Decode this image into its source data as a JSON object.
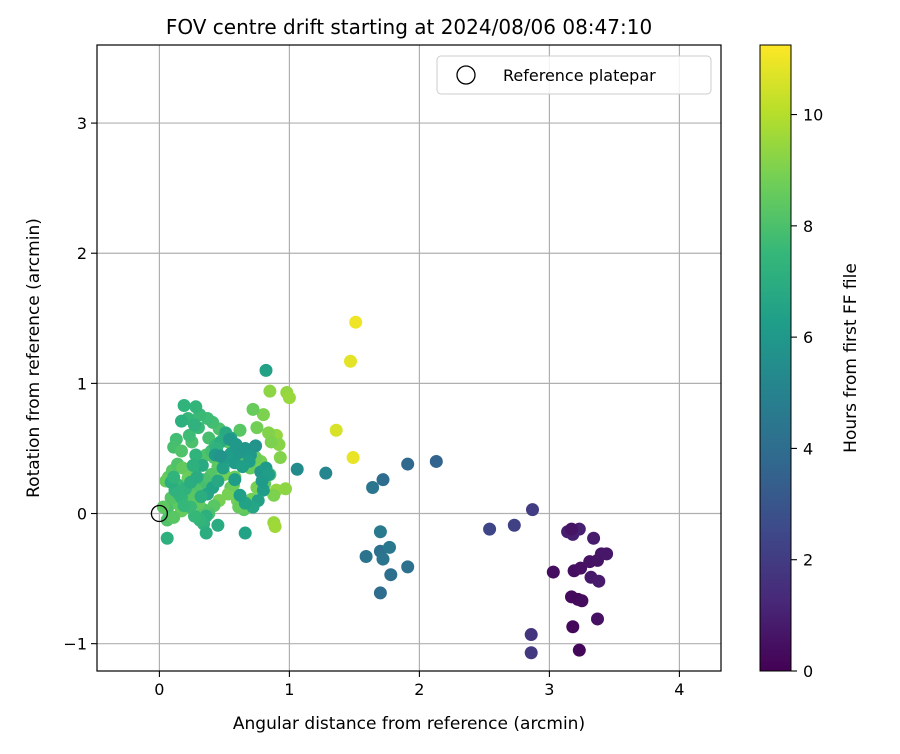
{
  "chart_data": {
    "type": "scatter",
    "title": "FOV centre drift starting at 2024/08/06 08:47:10",
    "xlabel": "Angular distance from reference (arcmin)",
    "ylabel": "Rotation from reference (arcmin)",
    "xlim": [
      -0.48,
      4.32
    ],
    "ylim": [
      -1.21,
      3.6
    ],
    "xticks": [
      0,
      1,
      2,
      3,
      4
    ],
    "yticks": [
      -1,
      0,
      1,
      2,
      3
    ],
    "grid": true,
    "legend": {
      "placement": "top-right",
      "entries": [
        "Reference platepar"
      ]
    },
    "reference_point": {
      "x": 0,
      "y": 0
    },
    "colorbar": {
      "label": "Hours from first FF file",
      "range": [
        0,
        11.25
      ],
      "ticks": [
        0,
        2,
        4,
        6,
        8,
        10
      ],
      "colormap": "viridis"
    },
    "points": [
      [
        3.23,
        -1.05,
        0.15
      ],
      [
        3.18,
        -0.87,
        0.2
      ],
      [
        3.17,
        -0.64,
        0.3
      ],
      [
        3.22,
        -0.66,
        0.25
      ],
      [
        3.25,
        -0.67,
        0.35
      ],
      [
        3.03,
        -0.45,
        0.4
      ],
      [
        3.19,
        -0.44,
        0.45
      ],
      [
        3.24,
        -0.42,
        0.5
      ],
      [
        3.31,
        -0.37,
        0.55
      ],
      [
        3.37,
        -0.36,
        0.6
      ],
      [
        3.4,
        -0.31,
        0.65
      ],
      [
        3.44,
        -0.31,
        0.7
      ],
      [
        3.32,
        -0.49,
        0.75
      ],
      [
        3.38,
        -0.52,
        0.8
      ],
      [
        3.37,
        -0.81,
        0.5
      ],
      [
        3.34,
        -0.19,
        0.85
      ],
      [
        3.14,
        -0.14,
        0.9
      ],
      [
        3.18,
        -0.16,
        0.95
      ],
      [
        3.23,
        -0.12,
        1.0
      ],
      [
        3.17,
        -0.12,
        0.6
      ],
      [
        2.86,
        -0.93,
        1.7
      ],
      [
        2.86,
        -1.07,
        1.9
      ],
      [
        2.87,
        0.03,
        2.0
      ],
      [
        2.73,
        -0.09,
        2.2
      ],
      [
        2.54,
        -0.12,
        2.4
      ],
      [
        1.7,
        -0.61,
        4.0
      ],
      [
        1.7,
        -0.29,
        4.2
      ],
      [
        1.78,
        -0.47,
        4.1
      ],
      [
        1.59,
        -0.33,
        4.3
      ],
      [
        1.72,
        -0.35,
        4.4
      ],
      [
        1.77,
        -0.26,
        4.5
      ],
      [
        1.91,
        -0.41,
        4.2
      ],
      [
        1.7,
        -0.14,
        4.6
      ],
      [
        1.64,
        0.2,
        4.4
      ],
      [
        1.72,
        0.26,
        4.0
      ],
      [
        1.91,
        0.38,
        3.8
      ],
      [
        2.13,
        0.4,
        3.6
      ],
      [
        1.28,
        0.31,
        5.2
      ],
      [
        1.06,
        0.34,
        5.4
      ],
      [
        0.82,
        1.1,
        6.4
      ],
      [
        1.36,
        0.64,
        10.6
      ],
      [
        1.49,
        0.43,
        10.9
      ],
      [
        1.47,
        1.17,
        10.8
      ],
      [
        1.51,
        1.47,
        11.0
      ],
      [
        0.98,
        0.93,
        9.4
      ],
      [
        1.0,
        0.89,
        9.5
      ],
      [
        0.85,
        0.94,
        9.3
      ],
      [
        0.9,
        0.6,
        9.4
      ],
      [
        0.84,
        0.62,
        9.1
      ],
      [
        0.92,
        0.53,
        9.2
      ],
      [
        0.86,
        0.55,
        9.0
      ],
      [
        0.8,
        0.76,
        9.0
      ],
      [
        0.75,
        0.66,
        8.8
      ],
      [
        0.72,
        0.8,
        8.6
      ],
      [
        0.93,
        0.43,
        9.1
      ],
      [
        0.9,
        0.18,
        9.4
      ],
      [
        0.97,
        0.19,
        9.3
      ],
      [
        0.88,
        0.14,
        9.0
      ],
      [
        0.88,
        -0.07,
        9.5
      ],
      [
        0.89,
        -0.1,
        9.6
      ],
      [
        0.78,
        0.4,
        8.9
      ],
      [
        0.74,
        0.43,
        8.7
      ],
      [
        0.7,
        0.35,
        8.6
      ],
      [
        0.66,
        0.37,
        8.7
      ],
      [
        0.63,
        0.42,
        8.5
      ],
      [
        0.62,
        0.64,
        8.3
      ],
      [
        0.58,
        0.28,
        8.6
      ],
      [
        0.55,
        0.2,
        8.5
      ],
      [
        0.6,
        0.1,
        8.8
      ],
      [
        0.65,
        0.03,
        8.4
      ],
      [
        0.68,
        0.06,
        8.6
      ],
      [
        0.71,
        0.11,
        8.8
      ],
      [
        0.75,
        0.2,
        8.9
      ],
      [
        0.81,
        0.23,
        8.5
      ],
      [
        0.85,
        0.3,
        8.2
      ],
      [
        0.53,
        0.55,
        8.3
      ],
      [
        0.5,
        0.6,
        8.1
      ],
      [
        0.46,
        0.65,
        8.0
      ],
      [
        0.41,
        0.7,
        7.8
      ],
      [
        0.37,
        0.73,
        7.7
      ],
      [
        0.31,
        0.76,
        7.6
      ],
      [
        0.28,
        0.82,
        7.4
      ],
      [
        0.19,
        0.83,
        7.3
      ],
      [
        0.22,
        0.73,
        7.5
      ],
      [
        0.13,
        0.57,
        7.8
      ],
      [
        0.11,
        0.51,
        7.9
      ],
      [
        0.17,
        0.48,
        8.1
      ],
      [
        0.25,
        0.55,
        8.0
      ],
      [
        0.23,
        0.6,
        7.7
      ],
      [
        0.3,
        0.66,
        7.6
      ],
      [
        0.38,
        0.58,
        7.9
      ],
      [
        0.42,
        0.43,
        8.2
      ],
      [
        0.47,
        0.4,
        8.3
      ],
      [
        0.45,
        0.36,
        8.4
      ],
      [
        0.4,
        0.3,
        8.2
      ],
      [
        0.35,
        0.26,
        8.0
      ],
      [
        0.32,
        0.2,
        7.9
      ],
      [
        0.28,
        0.18,
        8.1
      ],
      [
        0.25,
        0.13,
        8.3
      ],
      [
        0.21,
        0.05,
        8.5
      ],
      [
        0.17,
        0.02,
        8.6
      ],
      [
        0.13,
        0.08,
        8.4
      ],
      [
        0.09,
        0.12,
        8.2
      ],
      [
        0.07,
        0.28,
        8.4
      ],
      [
        0.05,
        0.25,
        8.6
      ],
      [
        0.1,
        0.33,
        8.3
      ],
      [
        0.14,
        0.38,
        8.1
      ],
      [
        0.18,
        0.35,
        8.5
      ],
      [
        0.22,
        0.27,
        8.7
      ],
      [
        0.27,
        0.33,
        8.6
      ],
      [
        0.31,
        0.38,
        8.4
      ],
      [
        0.36,
        0.45,
        8.1
      ],
      [
        0.4,
        0.48,
        7.8
      ],
      [
        0.43,
        0.52,
        7.5
      ],
      [
        0.5,
        0.3,
        8.8
      ],
      [
        0.53,
        0.15,
        8.9
      ],
      [
        0.57,
        0.22,
        8.7
      ],
      [
        0.61,
        0.05,
        8.6
      ],
      [
        0.46,
        0.1,
        8.9
      ],
      [
        0.42,
        0.06,
        8.3
      ],
      [
        0.38,
        0.0,
        8.0
      ],
      [
        0.34,
        0.03,
        8.2
      ],
      [
        0.3,
        0.08,
        8.5
      ],
      [
        0.06,
        0.03,
        8.0
      ],
      [
        0.06,
        -0.05,
        8.1
      ],
      [
        0.11,
        -0.03,
        8.3
      ],
      [
        0.03,
        0.05,
        8.4
      ],
      [
        0.14,
        0.22,
        7.6
      ],
      [
        0.17,
        0.12,
        7.4
      ],
      [
        0.2,
        0.19,
        7.2
      ],
      [
        0.24,
        0.24,
        7.0
      ],
      [
        0.29,
        0.28,
        6.9
      ],
      [
        0.33,
        0.37,
        6.8
      ],
      [
        0.37,
        0.15,
        6.6
      ],
      [
        0.41,
        0.2,
        6.5
      ],
      [
        0.45,
        0.25,
        6.7
      ],
      [
        0.49,
        0.35,
        6.4
      ],
      [
        0.52,
        0.43,
        6.3
      ],
      [
        0.55,
        0.46,
        6.2
      ],
      [
        0.58,
        0.39,
        6.1
      ],
      [
        0.62,
        0.47,
        6.0
      ],
      [
        0.66,
        0.5,
        5.9
      ],
      [
        0.7,
        0.45,
        6.0
      ],
      [
        0.74,
        0.52,
        5.8
      ],
      [
        0.78,
        0.32,
        5.9
      ],
      [
        0.82,
        0.35,
        6.1
      ],
      [
        0.84,
        0.3,
        6.3
      ],
      [
        0.8,
        0.18,
        6.2
      ],
      [
        0.76,
        0.1,
        6.4
      ],
      [
        0.72,
        0.05,
        6.6
      ],
      [
        0.66,
        0.08,
        6.5
      ],
      [
        0.62,
        0.14,
        6.3
      ],
      [
        0.58,
        0.26,
        6.2
      ],
      [
        0.55,
        0.58,
        6.6
      ],
      [
        0.51,
        0.62,
        6.8
      ],
      [
        0.47,
        0.55,
        7.0
      ],
      [
        0.44,
        0.5,
        7.2
      ],
      [
        0.28,
        0.45,
        7.3
      ],
      [
        0.26,
        0.37,
        7.1
      ],
      [
        0.32,
        0.13,
        7.0
      ],
      [
        0.36,
        -0.02,
        7.1
      ],
      [
        0.34,
        -0.08,
        7.2
      ],
      [
        0.36,
        -0.15,
        7.0
      ],
      [
        0.31,
        -0.05,
        7.4
      ],
      [
        0.27,
        -0.02,
        7.5
      ],
      [
        0.24,
        0.05,
        7.6
      ],
      [
        0.19,
        0.06,
        7.5
      ],
      [
        0.15,
        0.15,
        7.3
      ],
      [
        0.12,
        0.18,
        7.2
      ],
      [
        0.09,
        0.24,
        7.0
      ],
      [
        0.11,
        0.28,
        7.3
      ],
      [
        0.06,
        -0.19,
        7.1
      ],
      [
        0.45,
        -0.09,
        6.9
      ],
      [
        0.66,
        -0.15,
        6.5
      ],
      [
        0.54,
        0.57,
        5.9
      ],
      [
        0.59,
        0.53,
        6.0
      ],
      [
        0.43,
        0.45,
        6.1
      ],
      [
        0.47,
        0.44,
        5.8
      ],
      [
        0.69,
        0.4,
        6.2
      ],
      [
        0.64,
        0.36,
        6.3
      ],
      [
        0.79,
        0.25,
        6.1
      ],
      [
        0.27,
        0.68,
        7.2
      ],
      [
        0.17,
        0.71,
        7.1
      ]
    ]
  }
}
